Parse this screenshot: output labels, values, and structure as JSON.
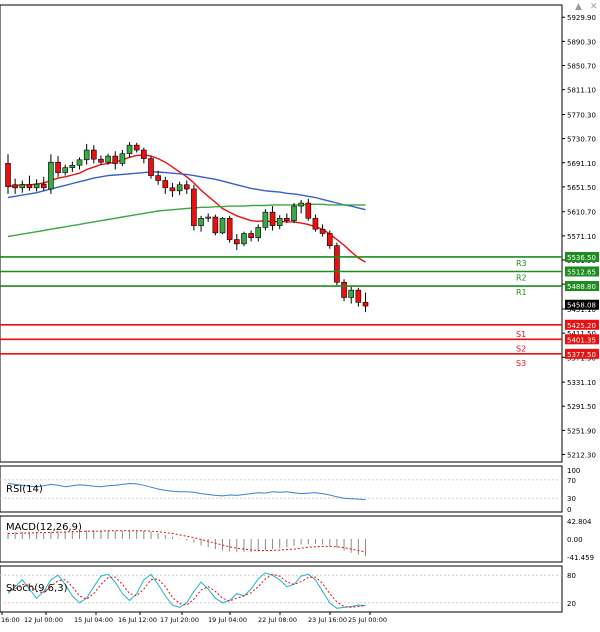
{
  "chart_data": {
    "type": "candlestick",
    "instrument_note": "",
    "price_axis": {
      "ylim": [
        5200,
        5950
      ],
      "ticks": [
        "5929.90",
        "5890.30",
        "5850.70",
        "5811.10",
        "5770.30",
        "5730.70",
        "5691.10",
        "5651.50",
        "5610.70",
        "5571.10",
        "5531.50",
        "5491.90",
        "5451.10",
        "5411.50",
        "5371.90",
        "5331.10",
        "5291.50",
        "5251.90",
        "5212.30"
      ]
    },
    "time_axis": {
      "labels": [
        "16:00",
        "12 Jul 00:00",
        "15 Jul 04:00",
        "16 Jul 12:00",
        "17 Jul 20:00",
        "19 Jul 04:00",
        "22 Jul 08:00",
        "23 Jul 16:00",
        "25 Jul 00:00"
      ]
    },
    "candles": [
      {
        "o": 5690,
        "h": 5705,
        "l": 5640,
        "c": 5652
      },
      {
        "o": 5655,
        "h": 5665,
        "l": 5640,
        "c": 5650
      },
      {
        "o": 5650,
        "h": 5662,
        "l": 5642,
        "c": 5655
      },
      {
        "o": 5655,
        "h": 5670,
        "l": 5645,
        "c": 5650
      },
      {
        "o": 5650,
        "h": 5664,
        "l": 5644,
        "c": 5656
      },
      {
        "o": 5656,
        "h": 5668,
        "l": 5645,
        "c": 5650
      },
      {
        "o": 5648,
        "h": 5705,
        "l": 5640,
        "c": 5692
      },
      {
        "o": 5692,
        "h": 5702,
        "l": 5668,
        "c": 5675
      },
      {
        "o": 5675,
        "h": 5688,
        "l": 5670,
        "c": 5683
      },
      {
        "o": 5683,
        "h": 5693,
        "l": 5676,
        "c": 5687
      },
      {
        "o": 5687,
        "h": 5700,
        "l": 5680,
        "c": 5696
      },
      {
        "o": 5696,
        "h": 5722,
        "l": 5688,
        "c": 5712
      },
      {
        "o": 5712,
        "h": 5720,
        "l": 5690,
        "c": 5697
      },
      {
        "o": 5697,
        "h": 5703,
        "l": 5688,
        "c": 5692
      },
      {
        "o": 5692,
        "h": 5706,
        "l": 5688,
        "c": 5702
      },
      {
        "o": 5702,
        "h": 5710,
        "l": 5680,
        "c": 5690
      },
      {
        "o": 5690,
        "h": 5712,
        "l": 5686,
        "c": 5706
      },
      {
        "o": 5706,
        "h": 5725,
        "l": 5700,
        "c": 5720
      },
      {
        "o": 5720,
        "h": 5724,
        "l": 5708,
        "c": 5712
      },
      {
        "o": 5712,
        "h": 5716,
        "l": 5690,
        "c": 5698
      },
      {
        "o": 5698,
        "h": 5702,
        "l": 5665,
        "c": 5670
      },
      {
        "o": 5670,
        "h": 5678,
        "l": 5655,
        "c": 5662
      },
      {
        "o": 5662,
        "h": 5668,
        "l": 5640,
        "c": 5650
      },
      {
        "o": 5650,
        "h": 5658,
        "l": 5635,
        "c": 5645
      },
      {
        "o": 5645,
        "h": 5660,
        "l": 5638,
        "c": 5655
      },
      {
        "o": 5655,
        "h": 5662,
        "l": 5640,
        "c": 5648
      },
      {
        "o": 5648,
        "h": 5655,
        "l": 5580,
        "c": 5588
      },
      {
        "o": 5588,
        "h": 5604,
        "l": 5578,
        "c": 5600
      },
      {
        "o": 5600,
        "h": 5608,
        "l": 5594,
        "c": 5602
      },
      {
        "o": 5602,
        "h": 5606,
        "l": 5572,
        "c": 5576
      },
      {
        "o": 5576,
        "h": 5602,
        "l": 5574,
        "c": 5600
      },
      {
        "o": 5600,
        "h": 5604,
        "l": 5560,
        "c": 5565
      },
      {
        "o": 5565,
        "h": 5574,
        "l": 5548,
        "c": 5558
      },
      {
        "o": 5558,
        "h": 5578,
        "l": 5554,
        "c": 5575
      },
      {
        "o": 5575,
        "h": 5580,
        "l": 5562,
        "c": 5568
      },
      {
        "o": 5568,
        "h": 5590,
        "l": 5562,
        "c": 5585
      },
      {
        "o": 5585,
        "h": 5615,
        "l": 5580,
        "c": 5610
      },
      {
        "o": 5610,
        "h": 5620,
        "l": 5580,
        "c": 5588
      },
      {
        "o": 5588,
        "h": 5605,
        "l": 5582,
        "c": 5600
      },
      {
        "o": 5600,
        "h": 5608,
        "l": 5592,
        "c": 5596
      },
      {
        "o": 5596,
        "h": 5625,
        "l": 5592,
        "c": 5620
      },
      {
        "o": 5620,
        "h": 5630,
        "l": 5608,
        "c": 5625
      },
      {
        "o": 5625,
        "h": 5632,
        "l": 5596,
        "c": 5600
      },
      {
        "o": 5600,
        "h": 5606,
        "l": 5578,
        "c": 5582
      },
      {
        "o": 5582,
        "h": 5590,
        "l": 5570,
        "c": 5575
      },
      {
        "o": 5575,
        "h": 5580,
        "l": 5550,
        "c": 5555
      },
      {
        "o": 5555,
        "h": 5560,
        "l": 5490,
        "c": 5495
      },
      {
        "o": 5495,
        "h": 5500,
        "l": 5464,
        "c": 5470
      },
      {
        "o": 5470,
        "h": 5488,
        "l": 5460,
        "c": 5482
      },
      {
        "o": 5482,
        "h": 5486,
        "l": 5455,
        "c": 5462
      },
      {
        "o": 5462,
        "h": 5478,
        "l": 5446,
        "c": 5456
      }
    ],
    "moving_averages": [
      {
        "name": "MA red",
        "color": "#e81010",
        "values": [
          5652,
          5654,
          5655,
          5655,
          5656,
          5658,
          5662,
          5666,
          5668,
          5671,
          5674,
          5680,
          5684,
          5688,
          5690,
          5692,
          5696,
          5700,
          5703,
          5704,
          5702,
          5698,
          5692,
          5684,
          5676,
          5668,
          5658,
          5646,
          5636,
          5626,
          5616,
          5610,
          5604,
          5600,
          5596,
          5595,
          5596,
          5594,
          5595,
          5594,
          5594,
          5592,
          5590,
          5586,
          5582,
          5574,
          5565,
          5556,
          5545,
          5535,
          5528
        ]
      },
      {
        "name": "MA blue",
        "color": "#3a5fcd",
        "values": [
          5634,
          5636,
          5638,
          5640,
          5642,
          5645,
          5648,
          5651,
          5654,
          5657,
          5660,
          5663,
          5666,
          5668,
          5670,
          5671,
          5672,
          5673,
          5674,
          5675,
          5676,
          5676,
          5675,
          5674,
          5673,
          5672,
          5670,
          5668,
          5666,
          5664,
          5661,
          5658,
          5655,
          5652,
          5649,
          5647,
          5645,
          5644,
          5643,
          5641,
          5640,
          5638,
          5636,
          5634,
          5631,
          5628,
          5625,
          5622,
          5620,
          5617,
          5614
        ]
      },
      {
        "name": "MA green",
        "color": "#3aa845",
        "values": [
          5570,
          5572,
          5574,
          5576,
          5578,
          5580,
          5582,
          5584,
          5586,
          5588,
          5590,
          5592,
          5594,
          5596,
          5598,
          5600,
          5602,
          5604,
          5606,
          5608,
          5610,
          5612,
          5613,
          5614,
          5615,
          5616,
          5617,
          5618,
          5618,
          5619,
          5619,
          5620,
          5620,
          5620,
          5621,
          5621,
          5621,
          5622,
          5622,
          5622,
          5622,
          5622,
          5623,
          5623,
          5623,
          5622,
          5622,
          5622,
          5622,
          5622,
          5622
        ]
      }
    ],
    "levels": [
      {
        "label": "R3",
        "value_label": "5536.50",
        "value": 5536.5,
        "kind": "resistance",
        "color": "#1e8c1e"
      },
      {
        "label": "R2",
        "value_label": "5512.65",
        "value": 5512.65,
        "kind": "resistance",
        "color": "#1e8c1e"
      },
      {
        "label": "R1",
        "value_label": "5488.80",
        "value": 5488.8,
        "kind": "resistance",
        "color": "#1e8c1e"
      },
      {
        "label": "S1",
        "value_label": "5425.20",
        "value": 5425.2,
        "kind": "support",
        "color": "#e81010"
      },
      {
        "label": "S2",
        "value_label": "5401.35",
        "value": 5401.35,
        "kind": "support",
        "color": "#e81010"
      },
      {
        "label": "S3",
        "value_label": "5377.50",
        "value": 5377.5,
        "kind": "support",
        "color": "#e81010"
      }
    ],
    "current_price": {
      "value_label": "5458.08",
      "value": 5458.08
    },
    "rsi": {
      "label": "RSI(14)",
      "ticks": [
        "100",
        "70",
        "30",
        "0"
      ],
      "ylim": [
        0,
        100
      ],
      "values": [
        62,
        60,
        58,
        56,
        55,
        57,
        60,
        58,
        55,
        57,
        59,
        58,
        56,
        55,
        57,
        58,
        60,
        62,
        61,
        58,
        54,
        50,
        47,
        45,
        44,
        44,
        43,
        40,
        38,
        36,
        35,
        37,
        36,
        38,
        40,
        42,
        41,
        44,
        43,
        44,
        42,
        40,
        41,
        42,
        40,
        37,
        33,
        30,
        29,
        28,
        27
      ]
    },
    "macd": {
      "label": "MACD(12,26,9)",
      "ticks": [
        "42.804",
        "0.00",
        "-41.459"
      ],
      "ylim": [
        -50,
        50
      ],
      "histogram": [
        14,
        15,
        16,
        15,
        14,
        14,
        16,
        17,
        17,
        17,
        18,
        19,
        19,
        19,
        19,
        18,
        18,
        19,
        19,
        18,
        16,
        13,
        9,
        5,
        1,
        -3,
        -8,
        -14,
        -18,
        -22,
        -25,
        -27,
        -28,
        -28,
        -28,
        -27,
        -24,
        -22,
        -20,
        -18,
        -15,
        -12,
        -11,
        -11,
        -12,
        -15,
        -19,
        -25,
        -30,
        -34,
        -37
      ],
      "signal": [
        12,
        12,
        13,
        13,
        14,
        14,
        14,
        15,
        15,
        16,
        16,
        17,
        17,
        17,
        18,
        18,
        18,
        18,
        18,
        18,
        17,
        16,
        14,
        12,
        9,
        6,
        3,
        -1,
        -5,
        -9,
        -13,
        -17,
        -20,
        -22,
        -24,
        -25,
        -25,
        -25,
        -24,
        -23,
        -22,
        -20,
        -18,
        -17,
        -16,
        -16,
        -17,
        -19,
        -22,
        -25,
        -28
      ]
    },
    "stochastic": {
      "label": "Stoch(9,6,3)",
      "ticks": [
        "80",
        "20"
      ],
      "ylim": [
        0,
        100
      ],
      "k": [
        40,
        55,
        70,
        50,
        30,
        45,
        70,
        80,
        60,
        35,
        20,
        30,
        55,
        78,
        82,
        65,
        40,
        25,
        40,
        70,
        82,
        60,
        35,
        15,
        10,
        20,
        45,
        65,
        50,
        30,
        20,
        25,
        40,
        35,
        50,
        72,
        85,
        80,
        70,
        55,
        60,
        78,
        82,
        70,
        45,
        20,
        8,
        10,
        12,
        15,
        14
      ],
      "d": [
        45,
        50,
        60,
        58,
        45,
        42,
        55,
        68,
        70,
        55,
        35,
        28,
        40,
        60,
        75,
        76,
        60,
        40,
        35,
        50,
        70,
        72,
        55,
        32,
        18,
        15,
        28,
        48,
        55,
        45,
        30,
        24,
        30,
        35,
        42,
        55,
        72,
        82,
        78,
        65,
        60,
        66,
        75,
        76,
        62,
        40,
        22,
        12,
        10,
        12,
        14
      ]
    }
  }
}
